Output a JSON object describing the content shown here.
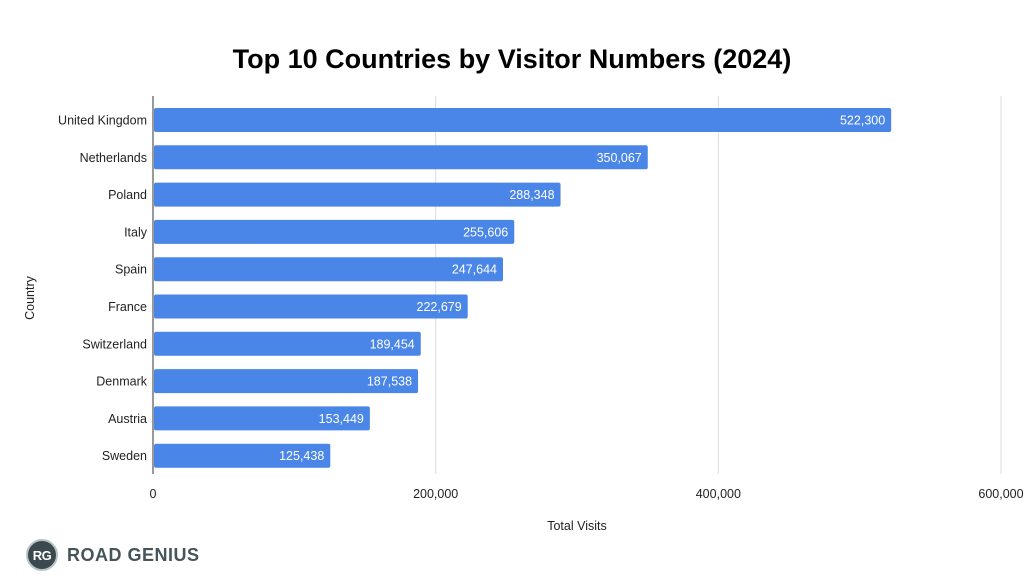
{
  "chart_data": {
    "type": "bar",
    "orientation": "horizontal",
    "title": "Top 10 Countries by Visitor Numbers (2024)",
    "xlabel": "Total Visits",
    "ylabel": "Country",
    "categories": [
      "United Kingdom",
      "Netherlands",
      "Poland",
      "Italy",
      "Spain",
      "France",
      "Switzerland",
      "Denmark",
      "Austria",
      "Sweden"
    ],
    "values": [
      522300,
      350067,
      288348,
      255606,
      247644,
      222679,
      189454,
      187538,
      153449,
      125438
    ],
    "data_labels": [
      "522,300",
      "350,067",
      "288,348",
      "255,606",
      "247,644",
      "222,679",
      "189,454",
      "187,538",
      "153,449",
      "125,438"
    ],
    "xlim": [
      0,
      600000
    ],
    "xticks": [
      0,
      200000,
      400000,
      600000
    ],
    "xtick_labels": [
      "0",
      "200,000",
      "400,000",
      "600,000"
    ],
    "bar_color": "#4a86e8",
    "grid": true,
    "legend": "none"
  },
  "branding": {
    "badge": "RG",
    "name": "ROAD GENIUS"
  }
}
